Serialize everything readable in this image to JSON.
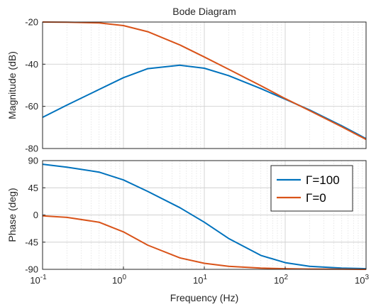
{
  "chart_data": [
    {
      "type": "line",
      "title": "Bode Diagram",
      "ylabel": "Magnitude (dB)",
      "x_scale": "log",
      "xlim": [
        0.1,
        1000
      ],
      "ylim": [
        -80,
        -20
      ],
      "y_ticks": [
        "-20",
        "-40",
        "-60",
        "-80"
      ],
      "grid": true,
      "series": [
        {
          "name": "Γ=100",
          "color": "#0072BD",
          "x": [
            0.1,
            0.2,
            0.5,
            1,
            2,
            5,
            10,
            20,
            50,
            100,
            200,
            500,
            1000
          ],
          "y": [
            -65.2,
            -59.4,
            -52,
            -46.4,
            -42.1,
            -40.5,
            -41.9,
            -45.4,
            -51.6,
            -56.6,
            -61.7,
            -69.2,
            -75.3
          ]
        },
        {
          "name": "Γ=0",
          "color": "#D95319",
          "x": [
            0.1,
            0.2,
            0.5,
            1,
            2,
            5,
            10,
            20,
            50,
            100,
            200,
            500,
            1000
          ],
          "y": [
            -20,
            -20.1,
            -20.4,
            -21.7,
            -24.6,
            -30.9,
            -36.6,
            -42.4,
            -50.2,
            -56.3,
            -62,
            -69.7,
            -75.7
          ]
        }
      ]
    },
    {
      "type": "line",
      "xlabel": "Frequency  (Hz)",
      "ylabel": "Phase (deg)",
      "x_scale": "log",
      "xlim": [
        0.1,
        1000
      ],
      "ylim": [
        -90,
        90
      ],
      "x_ticks": [
        {
          "base": "10",
          "exp": "-1"
        },
        {
          "base": "10",
          "exp": "0"
        },
        {
          "base": "10",
          "exp": "1"
        },
        {
          "base": "10",
          "exp": "2"
        },
        {
          "base": "10",
          "exp": "3"
        }
      ],
      "y_ticks": [
        "90",
        "45",
        "0",
        "-45",
        "-90"
      ],
      "grid": true,
      "legend": {
        "placement": "top-right",
        "entries": [
          {
            "label": "Γ=100",
            "color": "#0072BD"
          },
          {
            "label": "Γ=0",
            "color": "#D95319"
          }
        ]
      },
      "series": [
        {
          "name": "Γ=100",
          "color": "#0072BD",
          "x": [
            0.1,
            0.2,
            0.5,
            1,
            2,
            5,
            10,
            20,
            50,
            100,
            200,
            500,
            1000
          ],
          "y": [
            84,
            79,
            71,
            58,
            39,
            12,
            -12,
            -39,
            -67,
            -79,
            -85,
            -88,
            -89
          ]
        },
        {
          "name": "Γ=0",
          "color": "#D95319",
          "x": [
            0.1,
            0.2,
            0.5,
            1,
            2,
            5,
            10,
            20,
            50,
            100,
            200,
            500,
            1000
          ],
          "y": [
            -1.5,
            -4,
            -12,
            -28,
            -50,
            -71,
            -80,
            -85,
            -88,
            -89,
            -89.5,
            -89.8,
            -90
          ]
        }
      ]
    }
  ]
}
